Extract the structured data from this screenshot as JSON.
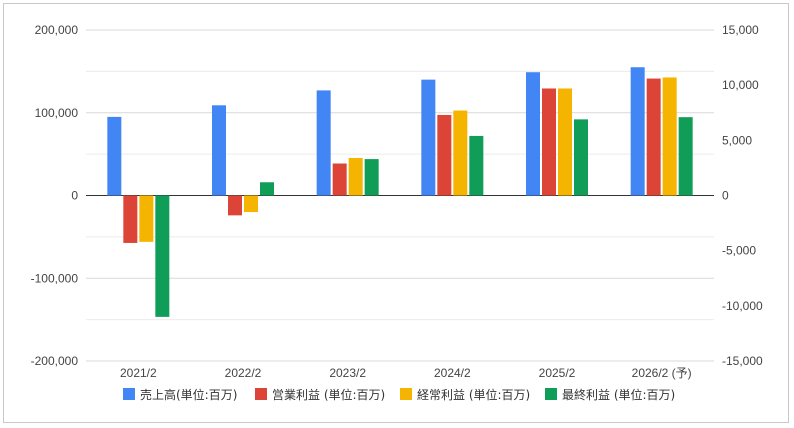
{
  "chart_data": {
    "type": "bar",
    "categories": [
      "2021/2",
      "2022/2",
      "2023/2",
      "2024/2",
      "2025/2",
      "2026/2 (予)"
    ],
    "series": [
      {
        "name": "売上高(単位:百万)",
        "axis": "left",
        "color": "#4285F4",
        "values": [
          95000,
          109000,
          127000,
          140000,
          149000,
          155000
        ]
      },
      {
        "name": "営業利益 (単位:百万)",
        "axis": "right",
        "color": "#DB4437",
        "values": [
          -4300,
          -1800,
          2900,
          7300,
          9700,
          10600
        ]
      },
      {
        "name": "経常利益 (単位:百万)",
        "axis": "right",
        "color": "#F4B400",
        "values": [
          -4200,
          -1500,
          3400,
          7700,
          9700,
          10700
        ]
      },
      {
        "name": "最終利益 (単位:百万)",
        "axis": "right",
        "color": "#0F9D58",
        "values": [
          -11000,
          1200,
          3300,
          5400,
          6900,
          7100
        ]
      }
    ],
    "y_left": {
      "range": [
        -200000,
        200000
      ],
      "ticks": [
        "200,000",
        "100,000",
        "0",
        "-100,000",
        "-200,000"
      ]
    },
    "y_right": {
      "range": [
        -15000,
        15000
      ],
      "ticks": [
        "15,000",
        "10,000",
        "5,000",
        "0",
        "-5,000",
        "-10,000",
        "-15,000"
      ]
    },
    "grid": true,
    "legend_position": "bottom"
  }
}
